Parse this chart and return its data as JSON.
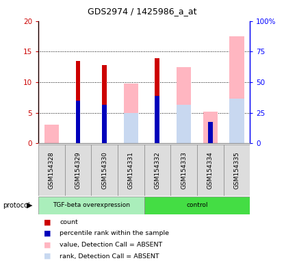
{
  "title": "GDS2974 / 1425986_a_at",
  "samples": [
    "GSM154328",
    "GSM154329",
    "GSM154330",
    "GSM154331",
    "GSM154332",
    "GSM154333",
    "GSM154334",
    "GSM154335"
  ],
  "group1_label": "TGF-beta overexpression",
  "group2_label": "control",
  "group1_count": 4,
  "group2_count": 4,
  "red_bars": [
    0,
    13.5,
    12.8,
    0,
    13.9,
    0,
    0,
    0
  ],
  "blue_bars": [
    0,
    7.0,
    6.3,
    0,
    7.8,
    0,
    3.5,
    0
  ],
  "pink_bars": [
    3.0,
    0,
    0,
    9.8,
    0,
    12.5,
    5.2,
    17.5
  ],
  "lightblue_bars": [
    0,
    0,
    0,
    5.0,
    0,
    6.3,
    0,
    7.3
  ],
  "ylim_left": [
    0,
    20
  ],
  "ylim_right": [
    0,
    100
  ],
  "yticks_left": [
    0,
    5,
    10,
    15,
    20
  ],
  "yticks_right": [
    0,
    25,
    50,
    75,
    100
  ],
  "ytick_labels_left": [
    "0",
    "5",
    "10",
    "15",
    "20"
  ],
  "ytick_labels_right": [
    "0",
    "25",
    "50",
    "75",
    "100%"
  ],
  "color_red": "#CC0000",
  "color_blue": "#0000BB",
  "color_pink": "#FFB6C1",
  "color_lightblue": "#C8D8F0",
  "color_group1_bg": "#AAEEBB",
  "color_group2_bg": "#44DD44",
  "color_sample_bg": "#DDDDDD",
  "protocol_label": "protocol",
  "legend_items": [
    {
      "label": "count",
      "color": "#CC0000"
    },
    {
      "label": "percentile rank within the sample",
      "color": "#0000BB"
    },
    {
      "label": "value, Detection Call = ABSENT",
      "color": "#FFB6C1"
    },
    {
      "label": "rank, Detection Call = ABSENT",
      "color": "#C8D8F0"
    }
  ]
}
